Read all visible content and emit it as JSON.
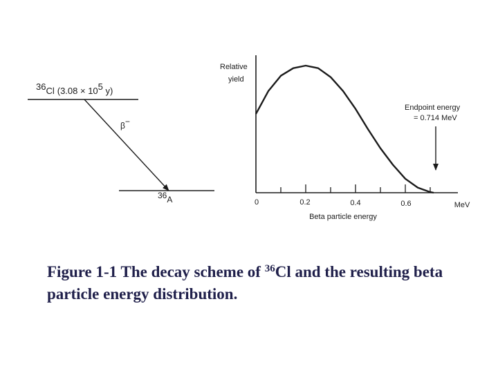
{
  "decay_scheme": {
    "parent_mass": "36",
    "parent_element": "Cl",
    "half_life_prefix": "(3.08 × 10",
    "half_life_exponent": "5",
    "half_life_suffix": " y)",
    "beta_symbol": "β",
    "beta_sign": "−",
    "daughter_mass": "36",
    "daughter_element": "A"
  },
  "spectrum": {
    "y_label_line1": "Relative",
    "y_label_line2": "yield",
    "x_ticks": [
      "0",
      "0.2",
      "0.4",
      "0.6"
    ],
    "x_unit": "MeV",
    "x_label": "Beta particle energy",
    "endpoint_line1": "Endpoint energy",
    "endpoint_line2": "= 0.714 MeV"
  },
  "chart_data": {
    "type": "line",
    "x": [
      0,
      0.05,
      0.1,
      0.15,
      0.2,
      0.25,
      0.3,
      0.35,
      0.4,
      0.45,
      0.5,
      0.55,
      0.6,
      0.65,
      0.7,
      0.714
    ],
    "y": [
      0.62,
      0.8,
      0.92,
      0.98,
      1.0,
      0.98,
      0.91,
      0.8,
      0.66,
      0.5,
      0.35,
      0.22,
      0.11,
      0.04,
      0.005,
      0
    ],
    "xlabel": "Beta particle energy",
    "ylabel": "Relative yield",
    "x_unit": "MeV",
    "xlim": [
      0,
      0.78
    ],
    "grid": false,
    "annotation": "Endpoint energy = 0.714 MeV"
  },
  "caption": {
    "prefix": "Figure 1-1 The decay scheme of ",
    "superscript": "36",
    "suffix": "Cl and the resulting beta particle energy distribution."
  }
}
